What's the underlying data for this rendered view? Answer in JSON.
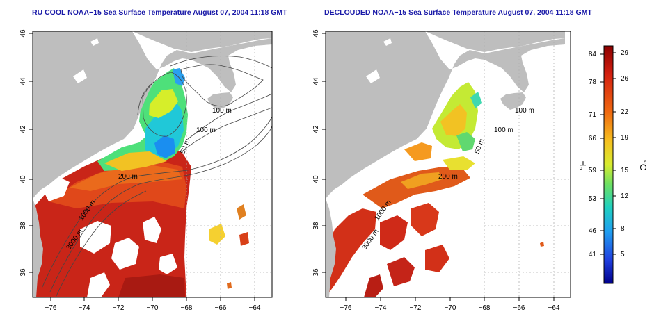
{
  "titles": {
    "left": "RU COOL NOAA−15 Sea Surface Temperature August 07, 2004 11:18 GMT",
    "right": "DECLOUDED NOAA−15 Sea Surface Temperature August 07, 2004 11:18 GMT"
  },
  "map_axes": {
    "lon_range": [
      -77,
      -63
    ],
    "lat_range": [
      35,
      46
    ],
    "lon_ticks": [
      "−76",
      "−74",
      "−72",
      "−70",
      "−68",
      "−66",
      "−64"
    ],
    "lat_ticks": [
      "36",
      "38",
      "40",
      "42",
      "44",
      "46"
    ]
  },
  "contour_labels": {
    "m50": "50 m",
    "m100": "100 m",
    "m200": "200 m",
    "m1000": "1000 m",
    "m3000": "3000 m"
  },
  "colorbar": {
    "fahrenheit_label": "°F",
    "celsius_label": "°C",
    "fahrenheit_ticks": [
      "84",
      "78",
      "71",
      "66",
      "59",
      "53",
      "46",
      "41"
    ],
    "celsius_ticks": [
      "29",
      "26",
      "22",
      "19",
      "15",
      "12",
      "8",
      "5"
    ]
  },
  "colors": {
    "land": "#bebebe",
    "title": "#1a1aa8",
    "scale_top": "#8b0000",
    "scale_bottom": "#00008b"
  }
}
